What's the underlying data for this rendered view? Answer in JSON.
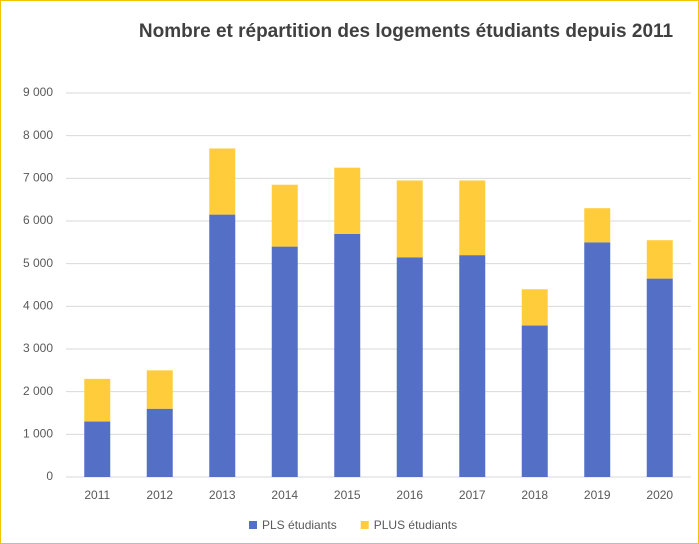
{
  "chart_data": {
    "type": "stacked_bar",
    "title": "Nombre et répartition des logements étudiants depuis 2011",
    "categories": [
      "2011",
      "2012",
      "2013",
      "2014",
      "2015",
      "2016",
      "2017",
      "2018",
      "2019",
      "2020"
    ],
    "series": [
      {
        "name": "PLS étudiants",
        "color": "#5470c6",
        "values": [
          1300,
          1600,
          6150,
          5400,
          5700,
          5150,
          5200,
          3550,
          5500,
          4650
        ]
      },
      {
        "name": "PLUS étudiants",
        "color": "#ffcd3c",
        "values": [
          1000,
          900,
          1550,
          1450,
          1550,
          1800,
          1750,
          850,
          800,
          900
        ]
      }
    ],
    "ylim": [
      0,
      9000
    ],
    "yticks": [
      0,
      {
        "value": 1000,
        "label": "1 000"
      },
      {
        "value": 2000,
        "label": "2 000"
      },
      {
        "value": 3000,
        "label": "3 000"
      },
      {
        "value": 4000,
        "label": "4 000"
      },
      {
        "value": 5000,
        "label": "5 000"
      },
      {
        "value": 6000,
        "label": "6 000"
      },
      {
        "value": 7000,
        "label": "7 000"
      },
      {
        "value": 8000,
        "label": "8 000"
      },
      {
        "value": 9000,
        "label": "9 000"
      }
    ],
    "grid": true,
    "legend": "bottom"
  }
}
